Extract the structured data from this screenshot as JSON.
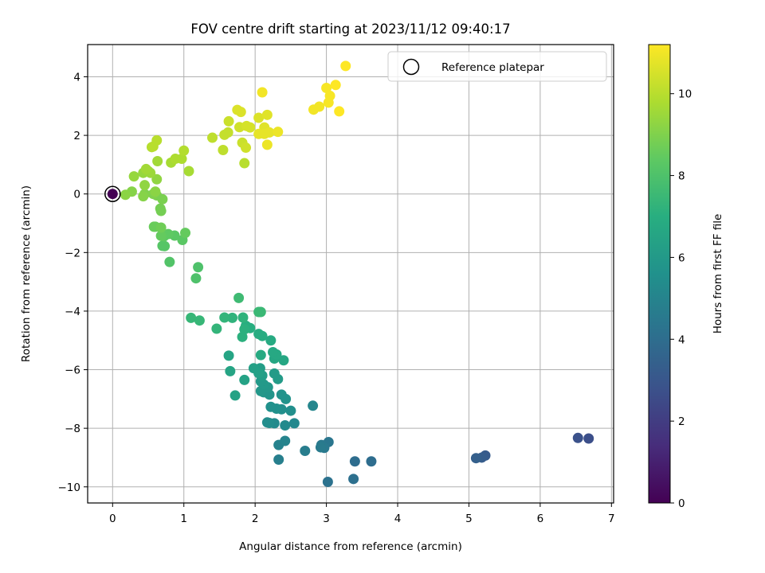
{
  "chart_data": {
    "type": "scatter",
    "title": "FOV centre drift starting at 2023/11/12 09:40:17",
    "xlabel": "Angular distance from reference (arcmin)",
    "ylabel": "Rotation from reference (arcmin)",
    "colorbar_label": "Hours from first FF file",
    "xlim": [
      -0.35,
      7.03
    ],
    "ylim": [
      -10.55,
      5.1
    ],
    "clim": [
      0,
      11.2
    ],
    "xticks": [
      0,
      1,
      2,
      3,
      4,
      5,
      6,
      7
    ],
    "yticks": [
      -10,
      -8,
      -6,
      -4,
      -2,
      0,
      2,
      4
    ],
    "cticks": [
      0,
      2,
      4,
      6,
      8,
      10
    ],
    "grid": true,
    "colormap": "viridis",
    "legend": {
      "position": "top-right",
      "entries": [
        "Reference platepar"
      ]
    },
    "reference_point": {
      "x": 0,
      "y": 0
    },
    "points": [
      {
        "x": 0.0,
        "y": 0.0,
        "h": 0.0
      },
      {
        "x": 6.68,
        "y": -8.35,
        "h": 2.7
      },
      {
        "x": 6.53,
        "y": -8.33,
        "h": 2.8
      },
      {
        "x": 5.23,
        "y": -8.93,
        "h": 3.2
      },
      {
        "x": 5.18,
        "y": -9.0,
        "h": 3.3
      },
      {
        "x": 5.1,
        "y": -9.02,
        "h": 3.4
      },
      {
        "x": 3.63,
        "y": -9.13,
        "h": 4.0
      },
      {
        "x": 3.4,
        "y": -9.13,
        "h": 4.0
      },
      {
        "x": 3.38,
        "y": -9.73,
        "h": 4.1
      },
      {
        "x": 3.02,
        "y": -9.83,
        "h": 4.2
      },
      {
        "x": 3.03,
        "y": -8.47,
        "h": 4.4
      },
      {
        "x": 2.93,
        "y": -8.57,
        "h": 4.5
      },
      {
        "x": 2.97,
        "y": -8.67,
        "h": 4.5
      },
      {
        "x": 2.92,
        "y": -8.65,
        "h": 4.6
      },
      {
        "x": 2.7,
        "y": -8.77,
        "h": 4.7
      },
      {
        "x": 2.33,
        "y": -9.07,
        "h": 4.8
      },
      {
        "x": 2.33,
        "y": -8.57,
        "h": 4.9
      },
      {
        "x": 2.42,
        "y": -8.43,
        "h": 5.0
      },
      {
        "x": 2.81,
        "y": -7.23,
        "h": 5.1
      },
      {
        "x": 2.55,
        "y": -7.83,
        "h": 5.2
      },
      {
        "x": 2.42,
        "y": -7.9,
        "h": 5.3
      },
      {
        "x": 2.27,
        "y": -7.83,
        "h": 5.3
      },
      {
        "x": 2.2,
        "y": -7.82,
        "h": 5.4
      },
      {
        "x": 2.17,
        "y": -7.8,
        "h": 5.4
      },
      {
        "x": 2.5,
        "y": -7.4,
        "h": 5.5
      },
      {
        "x": 2.37,
        "y": -7.35,
        "h": 5.5
      },
      {
        "x": 2.3,
        "y": -7.33,
        "h": 5.6
      },
      {
        "x": 2.22,
        "y": -7.27,
        "h": 5.6
      },
      {
        "x": 2.43,
        "y": -7.0,
        "h": 5.7
      },
      {
        "x": 2.37,
        "y": -6.85,
        "h": 5.7
      },
      {
        "x": 2.2,
        "y": -6.85,
        "h": 5.8
      },
      {
        "x": 2.12,
        "y": -6.77,
        "h": 5.8
      },
      {
        "x": 2.08,
        "y": -6.73,
        "h": 5.9
      },
      {
        "x": 2.18,
        "y": -6.6,
        "h": 5.9
      },
      {
        "x": 2.12,
        "y": -6.5,
        "h": 6.0
      },
      {
        "x": 2.08,
        "y": -6.4,
        "h": 6.0
      },
      {
        "x": 2.32,
        "y": -6.32,
        "h": 6.1
      },
      {
        "x": 2.27,
        "y": -6.13,
        "h": 6.1
      },
      {
        "x": 2.1,
        "y": -6.2,
        "h": 6.2
      },
      {
        "x": 2.07,
        "y": -5.95,
        "h": 6.2
      },
      {
        "x": 2.05,
        "y": -6.12,
        "h": 6.3
      },
      {
        "x": 1.98,
        "y": -5.95,
        "h": 6.3
      },
      {
        "x": 1.85,
        "y": -6.35,
        "h": 6.4
      },
      {
        "x": 1.72,
        "y": -6.88,
        "h": 6.4
      },
      {
        "x": 1.65,
        "y": -6.05,
        "h": 6.5
      },
      {
        "x": 1.63,
        "y": -5.52,
        "h": 6.5
      },
      {
        "x": 2.4,
        "y": -5.68,
        "h": 6.6
      },
      {
        "x": 2.27,
        "y": -5.62,
        "h": 6.6
      },
      {
        "x": 2.3,
        "y": -5.48,
        "h": 6.7
      },
      {
        "x": 2.25,
        "y": -5.4,
        "h": 6.7
      },
      {
        "x": 2.08,
        "y": -5.5,
        "h": 6.8
      },
      {
        "x": 2.22,
        "y": -5.0,
        "h": 6.8
      },
      {
        "x": 2.1,
        "y": -4.85,
        "h": 6.9
      },
      {
        "x": 2.05,
        "y": -4.78,
        "h": 6.9
      },
      {
        "x": 1.93,
        "y": -4.58,
        "h": 7.0
      },
      {
        "x": 1.87,
        "y": -4.5,
        "h": 7.0
      },
      {
        "x": 1.82,
        "y": -4.88,
        "h": 7.1
      },
      {
        "x": 1.85,
        "y": -4.62,
        "h": 7.1
      },
      {
        "x": 1.83,
        "y": -4.22,
        "h": 7.2
      },
      {
        "x": 1.68,
        "y": -4.23,
        "h": 7.2
      },
      {
        "x": 1.57,
        "y": -4.22,
        "h": 7.3
      },
      {
        "x": 1.46,
        "y": -4.6,
        "h": 7.3
      },
      {
        "x": 1.22,
        "y": -4.32,
        "h": 7.4
      },
      {
        "x": 1.1,
        "y": -4.23,
        "h": 7.4
      },
      {
        "x": 2.08,
        "y": -4.03,
        "h": 7.5
      },
      {
        "x": 2.05,
        "y": -4.03,
        "h": 7.5
      },
      {
        "x": 1.77,
        "y": -3.55,
        "h": 7.6
      },
      {
        "x": 1.17,
        "y": -2.88,
        "h": 8.0
      },
      {
        "x": 1.2,
        "y": -2.5,
        "h": 8.0
      },
      {
        "x": 0.8,
        "y": -2.32,
        "h": 8.1
      },
      {
        "x": 0.73,
        "y": -1.78,
        "h": 8.2
      },
      {
        "x": 0.7,
        "y": -1.77,
        "h": 8.2
      },
      {
        "x": 0.98,
        "y": -1.57,
        "h": 8.3
      },
      {
        "x": 0.87,
        "y": -1.42,
        "h": 8.3
      },
      {
        "x": 0.78,
        "y": -1.37,
        "h": 8.4
      },
      {
        "x": 0.72,
        "y": -1.45,
        "h": 8.4
      },
      {
        "x": 0.68,
        "y": -1.43,
        "h": 8.5
      },
      {
        "x": 1.02,
        "y": -1.33,
        "h": 8.5
      },
      {
        "x": 0.6,
        "y": -1.12,
        "h": 8.6
      },
      {
        "x": 0.58,
        "y": -1.12,
        "h": 8.6
      },
      {
        "x": 0.68,
        "y": -1.15,
        "h": 8.7
      },
      {
        "x": 0.68,
        "y": -0.58,
        "h": 8.8
      },
      {
        "x": 0.67,
        "y": -0.5,
        "h": 8.8
      },
      {
        "x": 0.7,
        "y": -0.18,
        "h": 8.9
      },
      {
        "x": 0.62,
        "y": -0.05,
        "h": 8.9
      },
      {
        "x": 0.57,
        "y": 0.0,
        "h": 9.0
      },
      {
        "x": 0.45,
        "y": 0.0,
        "h": 9.0
      },
      {
        "x": 0.43,
        "y": -0.08,
        "h": 9.1
      },
      {
        "x": 0.27,
        "y": 0.08,
        "h": 9.1
      },
      {
        "x": 0.18,
        "y": -0.03,
        "h": 9.2
      },
      {
        "x": 0.6,
        "y": 0.08,
        "h": 9.2
      },
      {
        "x": 0.45,
        "y": 0.3,
        "h": 9.3
      },
      {
        "x": 0.62,
        "y": 0.5,
        "h": 9.3
      },
      {
        "x": 0.3,
        "y": 0.6,
        "h": 9.4
      },
      {
        "x": 0.43,
        "y": 0.72,
        "h": 9.4
      },
      {
        "x": 0.5,
        "y": 0.78,
        "h": 9.5
      },
      {
        "x": 0.53,
        "y": 0.72,
        "h": 9.5
      },
      {
        "x": 0.47,
        "y": 0.85,
        "h": 9.6
      },
      {
        "x": 0.63,
        "y": 1.12,
        "h": 9.6
      },
      {
        "x": 1.07,
        "y": 0.78,
        "h": 9.7
      },
      {
        "x": 0.82,
        "y": 1.07,
        "h": 9.7
      },
      {
        "x": 0.88,
        "y": 1.2,
        "h": 9.8
      },
      {
        "x": 0.97,
        "y": 1.2,
        "h": 9.8
      },
      {
        "x": 1.0,
        "y": 1.48,
        "h": 9.9
      },
      {
        "x": 0.55,
        "y": 1.6,
        "h": 9.9
      },
      {
        "x": 0.57,
        "y": 1.62,
        "h": 10.0
      },
      {
        "x": 0.62,
        "y": 1.83,
        "h": 10.0
      },
      {
        "x": 1.85,
        "y": 1.05,
        "h": 10.0
      },
      {
        "x": 1.55,
        "y": 1.5,
        "h": 10.1
      },
      {
        "x": 1.4,
        "y": 1.92,
        "h": 10.1
      },
      {
        "x": 1.57,
        "y": 2.02,
        "h": 10.2
      },
      {
        "x": 1.62,
        "y": 2.1,
        "h": 10.2
      },
      {
        "x": 1.63,
        "y": 2.48,
        "h": 10.3
      },
      {
        "x": 1.82,
        "y": 1.75,
        "h": 10.3
      },
      {
        "x": 1.87,
        "y": 1.58,
        "h": 10.4
      },
      {
        "x": 1.78,
        "y": 2.28,
        "h": 10.4
      },
      {
        "x": 1.88,
        "y": 2.32,
        "h": 10.5
      },
      {
        "x": 1.93,
        "y": 2.27,
        "h": 10.5
      },
      {
        "x": 1.75,
        "y": 2.87,
        "h": 10.6
      },
      {
        "x": 1.8,
        "y": 2.8,
        "h": 10.6
      },
      {
        "x": 2.05,
        "y": 2.6,
        "h": 10.6
      },
      {
        "x": 2.17,
        "y": 2.7,
        "h": 10.7
      },
      {
        "x": 2.13,
        "y": 2.27,
        "h": 10.7
      },
      {
        "x": 2.05,
        "y": 2.05,
        "h": 10.8
      },
      {
        "x": 2.13,
        "y": 2.05,
        "h": 10.8
      },
      {
        "x": 2.2,
        "y": 2.1,
        "h": 10.8
      },
      {
        "x": 2.32,
        "y": 2.12,
        "h": 10.9
      },
      {
        "x": 2.17,
        "y": 1.68,
        "h": 10.9
      },
      {
        "x": 2.1,
        "y": 3.47,
        "h": 11.0
      },
      {
        "x": 2.82,
        "y": 2.88,
        "h": 11.0
      },
      {
        "x": 2.9,
        "y": 2.98,
        "h": 11.0
      },
      {
        "x": 3.0,
        "y": 3.62,
        "h": 11.1
      },
      {
        "x": 3.03,
        "y": 3.12,
        "h": 11.1
      },
      {
        "x": 3.05,
        "y": 3.35,
        "h": 11.1
      },
      {
        "x": 3.13,
        "y": 3.72,
        "h": 11.2
      },
      {
        "x": 3.18,
        "y": 2.82,
        "h": 11.2
      },
      {
        "x": 3.27,
        "y": 4.37,
        "h": 11.2
      }
    ]
  }
}
